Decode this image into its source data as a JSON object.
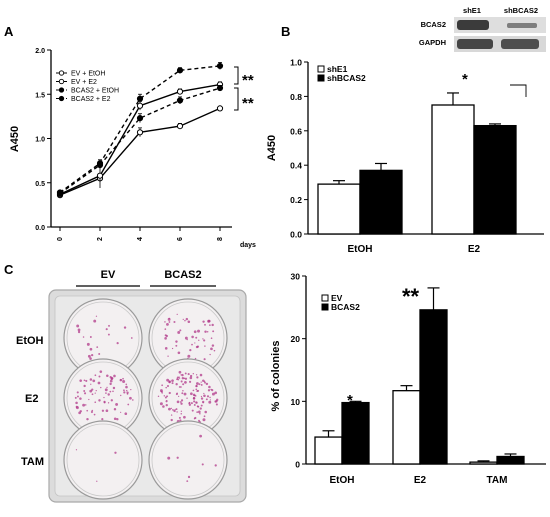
{
  "panels": {
    "A": "A",
    "B": "B",
    "C": "C"
  },
  "chart_data": [
    {
      "id": "A",
      "type": "line",
      "xlabel": "days",
      "ylabel": "A450",
      "x": [
        0,
        2,
        4,
        6,
        8
      ],
      "ylim": [
        0,
        2.0
      ],
      "yticks": [
        "0.0",
        "0.5",
        "1.0",
        "1.5",
        "2.0"
      ],
      "xticks": [
        "0",
        "2",
        "4",
        "6",
        "8"
      ],
      "series": [
        {
          "name": "EV + EtOH",
          "values": [
            0.36,
            0.55,
            1.07,
            1.14,
            1.34
          ],
          "err": [
            0.02,
            0.04,
            0.05,
            0.03,
            0.02
          ],
          "marker": "open-circle",
          "dash": false
        },
        {
          "name": "EV + E2",
          "values": [
            0.37,
            0.58,
            1.37,
            1.53,
            1.61
          ],
          "err": [
            0.02,
            0.14,
            0.05,
            0.03,
            0.03
          ],
          "marker": "open-circle",
          "dash": false
        },
        {
          "name": "BCAS2 + EtOH",
          "values": [
            0.38,
            0.7,
            1.23,
            1.43,
            1.57
          ],
          "err": [
            0.02,
            0.04,
            0.05,
            0.04,
            0.03
          ],
          "marker": "filled-circle",
          "dash": true
        },
        {
          "name": "BCAS2 + E2",
          "values": [
            0.39,
            0.72,
            1.45,
            1.77,
            1.82
          ],
          "err": [
            0.02,
            0.04,
            0.05,
            0.03,
            0.04
          ],
          "marker": "filled-circle",
          "dash": true
        }
      ],
      "legend_labels": [
        "EV + EtOH",
        "EV + E2",
        "BCAS2 + EtOH",
        "BCAS2 + E2"
      ],
      "annotations": [
        "**",
        "**"
      ]
    },
    {
      "id": "B",
      "type": "bar",
      "ylabel": "A450",
      "categories": [
        "EtOH",
        "E2"
      ],
      "ylim": [
        0,
        1.0
      ],
      "yticks": [
        "0.0",
        "0.2",
        "0.4",
        "0.6",
        "0.8",
        "1.0"
      ],
      "series": [
        {
          "name": "shE1",
          "values": [
            0.29,
            0.75
          ],
          "err": [
            0.02,
            0.07
          ],
          "fill": "#ffffff"
        },
        {
          "name": "shBCAS2",
          "values": [
            0.37,
            0.63
          ],
          "err": [
            0.04,
            0.01
          ],
          "fill": "#000000"
        }
      ],
      "annotations": [
        "*"
      ],
      "blot": {
        "lanes": [
          "shE1",
          "shBCAS2"
        ],
        "rows": [
          "BCAS2",
          "GAPDH"
        ]
      }
    },
    {
      "id": "C",
      "type": "bar",
      "ylabel": "% of colonies",
      "categories": [
        "EtOH",
        "E2",
        "TAM"
      ],
      "ylim": [
        0,
        30
      ],
      "yticks": [
        "0",
        "10",
        "20",
        "30"
      ],
      "series": [
        {
          "name": "EV",
          "values": [
            4.3,
            11.7,
            0.3
          ],
          "err": [
            1.0,
            0.8,
            0.2
          ],
          "fill": "#ffffff"
        },
        {
          "name": "BCAS2",
          "values": [
            9.8,
            24.6,
            1.2
          ],
          "err": [
            0.2,
            3.5,
            0.4
          ],
          "fill": "#000000"
        }
      ],
      "annotations": [
        "*",
        "**"
      ]
    }
  ],
  "plate": {
    "columns": [
      "EV",
      "BCAS2"
    ],
    "rows": [
      "EtOH",
      "E2",
      "TAM"
    ],
    "well_color": "#f3f0f1",
    "colony_color": "#b23a8a"
  }
}
